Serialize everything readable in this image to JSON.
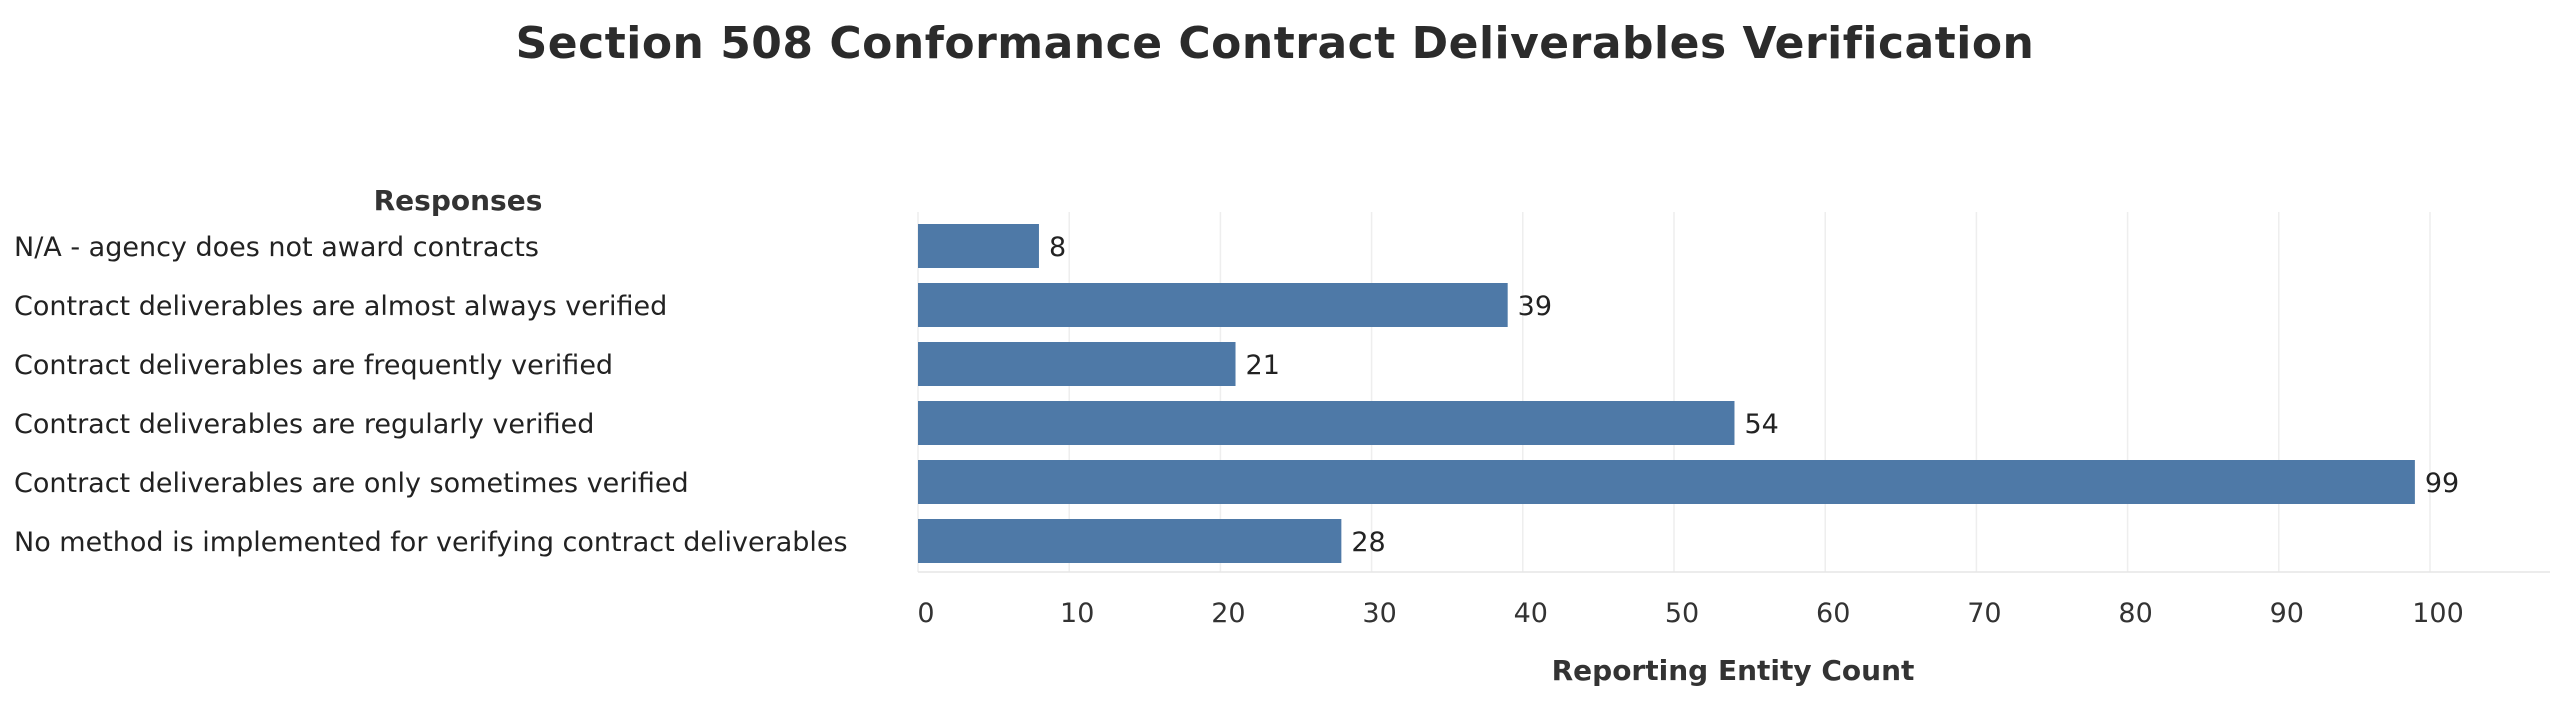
{
  "chart_data": {
    "type": "bar",
    "orientation": "horizontal",
    "title": "Section 508 Conformance Contract Deliverables Verification",
    "row_header": "Responses",
    "xlabel": "Reporting Entity Count",
    "ylabel": "",
    "categories": [
      "N/A - agency does not award contracts",
      "Contract deliverables are almost always verified",
      "Contract deliverables are frequently verified",
      "Contract deliverables are regularly verified",
      "Contract deliverables are only sometimes verified",
      "No method is implemented for verifying contract deliverables"
    ],
    "values": [
      8,
      39,
      21,
      54,
      99,
      28
    ],
    "data_labels": [
      "8",
      "39",
      "21",
      "54",
      "99",
      "28"
    ],
    "xlim": [
      0,
      105
    ],
    "x_ticks": [
      0,
      10,
      20,
      30,
      40,
      50,
      60,
      70,
      80,
      90,
      100
    ],
    "x_tick_labels": [
      "0",
      "10",
      "20",
      "30",
      "40",
      "50",
      "60",
      "70",
      "80",
      "90",
      "100"
    ],
    "grid": "vertical",
    "bar_color": "#4e79a7",
    "grid_color": "#eeeeee",
    "legend": "none"
  }
}
